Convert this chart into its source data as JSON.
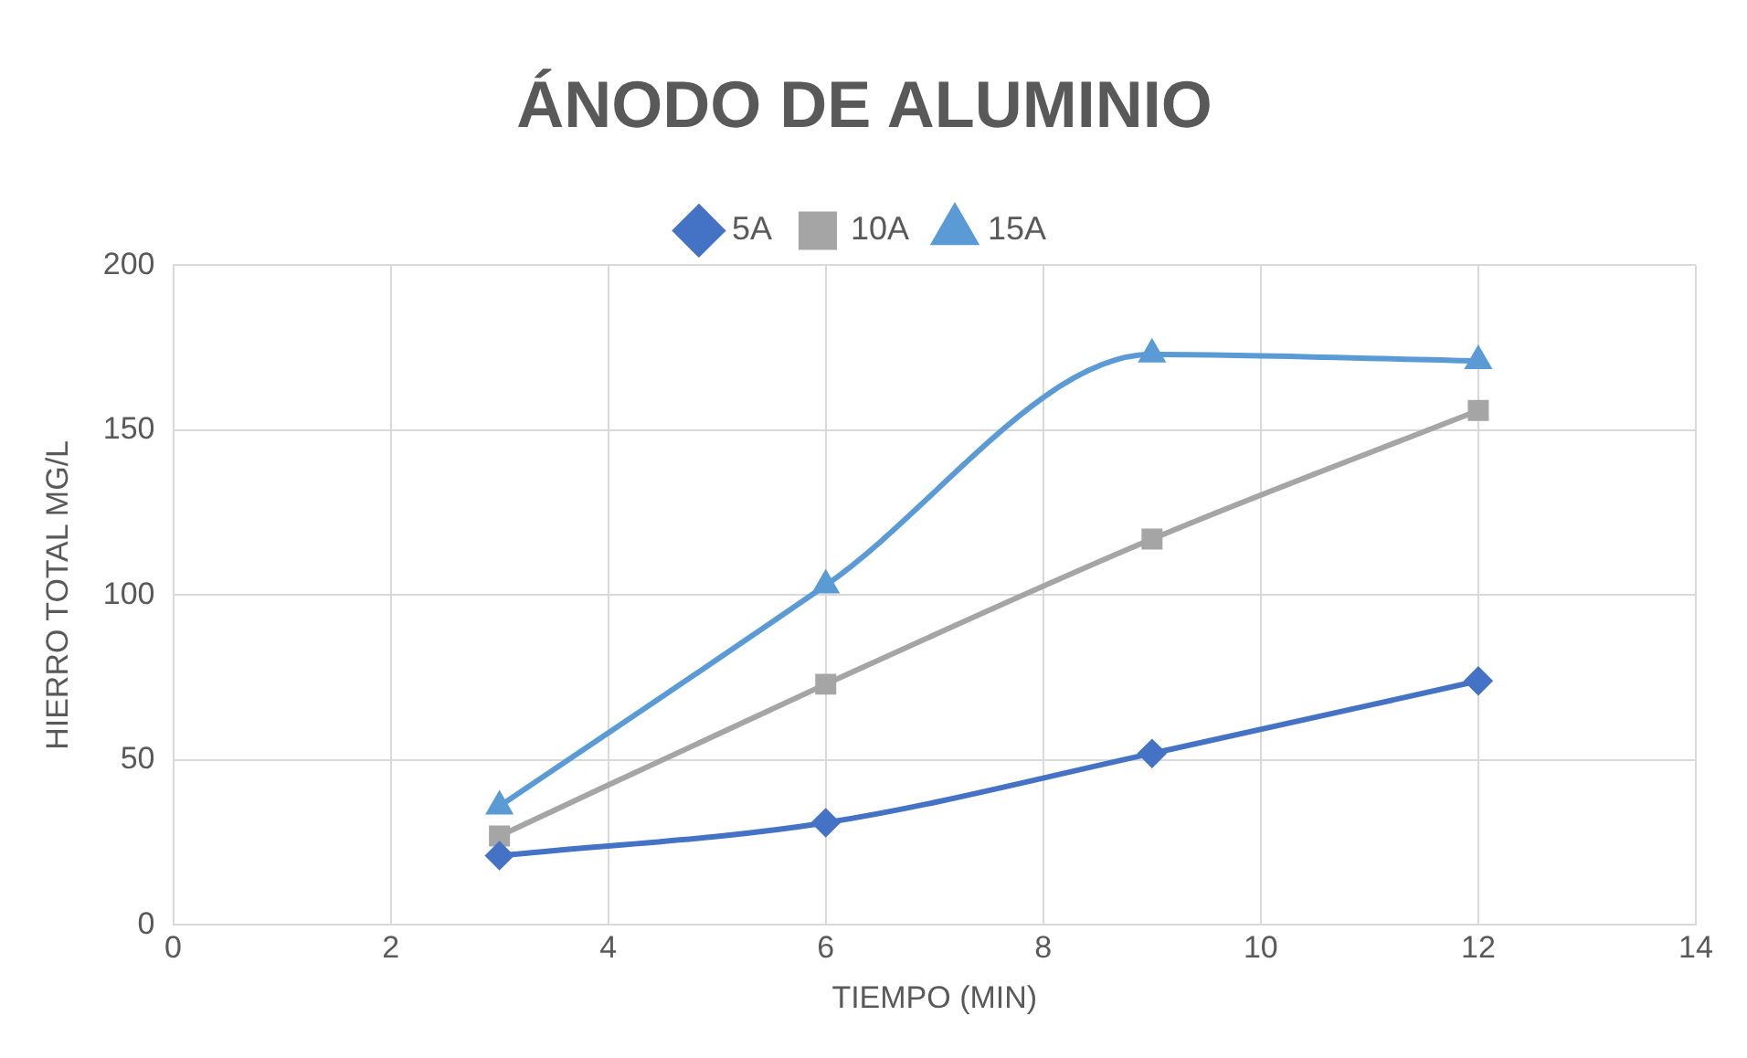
{
  "chart_data": {
    "type": "line",
    "title": "ÁNODO DE ALUMINIO",
    "xlabel": "TIEMPO (MIN)",
    "ylabel": "HIERRO TOTAL MG/L",
    "x": [
      3,
      6,
      9,
      12
    ],
    "series": [
      {
        "name": "5A",
        "color": "#4472c4",
        "marker": "diamond",
        "values": [
          21,
          31,
          52,
          74
        ]
      },
      {
        "name": "10A",
        "color": "#a5a5a5",
        "marker": "square",
        "values": [
          27,
          73,
          117,
          156
        ]
      },
      {
        "name": "15A",
        "color": "#5b9bd5",
        "marker": "triangle",
        "values": [
          36,
          103,
          173,
          171
        ]
      }
    ],
    "xlim": [
      0,
      14
    ],
    "xticks": [
      0,
      2,
      4,
      6,
      8,
      10,
      12,
      14
    ],
    "ylim": [
      0,
      200
    ],
    "yticks": [
      0,
      50,
      100,
      150,
      200
    ],
    "grid": true,
    "legend": "top",
    "line_style": "solid"
  }
}
